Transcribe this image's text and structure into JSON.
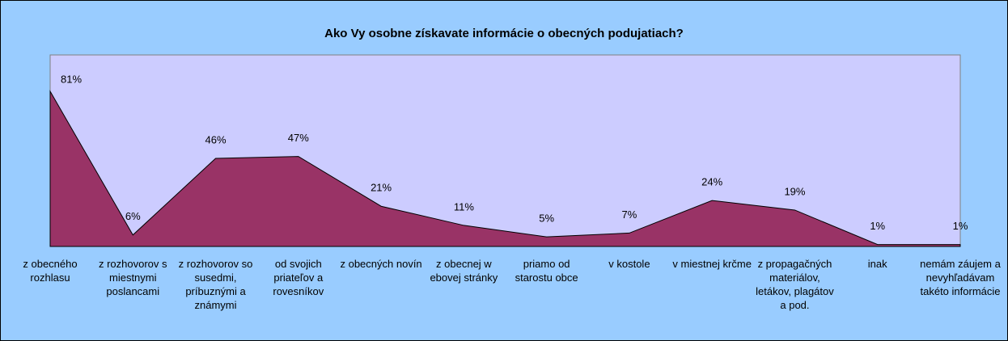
{
  "chart_data": {
    "type": "area",
    "title": "Ako Vy osobne získavate informácie o obecných podujatiach?",
    "categories": [
      "z obecného rozhlasu",
      "z rozhovorov s miestnymi poslancami",
      "z rozhovorov so susedmi, príbuznými a známymi",
      "od svojich priateľov a rovesníkov",
      "z obecných novín",
      "z obecnej w ebovej stránky",
      "priamo od starostu obce",
      "v kostole",
      "v miestnej krčme",
      "z propagačných materiálov, letákov, plagátov a pod.",
      "inak",
      "nemám záujem a nevyhľadávam takéto informácie"
    ],
    "values": [
      81,
      6,
      46,
      47,
      21,
      11,
      5,
      7,
      24,
      19,
      1,
      1
    ],
    "value_labels": [
      "81%",
      "6%",
      "46%",
      "47%",
      "21%",
      "11%",
      "5%",
      "7%",
      "24%",
      "19%",
      "1%",
      "1%"
    ],
    "color": "#993366",
    "plot_color": "#ccccff",
    "background": "#99ccff",
    "ylim": [
      0,
      100
    ]
  }
}
